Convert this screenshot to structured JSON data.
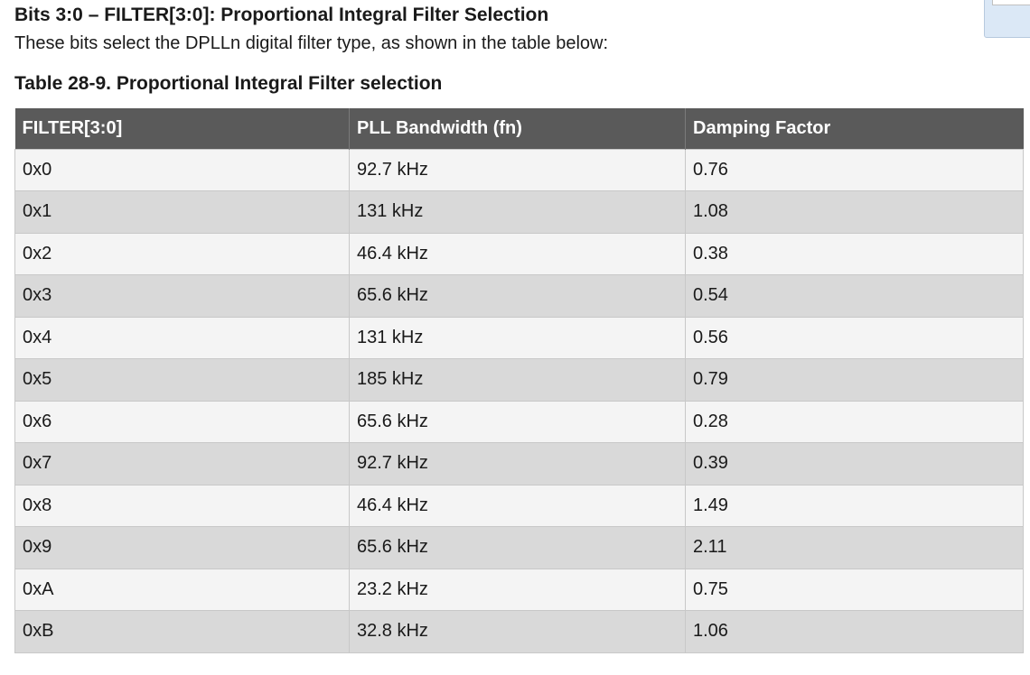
{
  "section": {
    "heading": "Bits 3:0 – FILTER[3:0]: Proportional Integral Filter Selection",
    "description": "These bits select the DPLLn digital filter type, as shown in the table below:"
  },
  "table": {
    "caption": "Table 28-9. Proportional Integral Filter selection",
    "headers": [
      "FILTER[3:0]",
      "PLL Bandwidth (fn)",
      "Damping Factor"
    ],
    "rows": [
      [
        "0x0",
        "92.7 kHz",
        "0.76"
      ],
      [
        "0x1",
        "131 kHz",
        "1.08"
      ],
      [
        "0x2",
        "46.4 kHz",
        "0.38"
      ],
      [
        "0x3",
        "65.6 kHz",
        "0.54"
      ],
      [
        "0x4",
        "131 kHz",
        "0.56"
      ],
      [
        "0x5",
        "185 kHz",
        "0.79"
      ],
      [
        "0x6",
        "65.6 kHz",
        "0.28"
      ],
      [
        "0x7",
        "92.7 kHz",
        "0.39"
      ],
      [
        "0x8",
        "46.4 kHz",
        "1.49"
      ],
      [
        "0x9",
        "65.6 kHz",
        "2.11"
      ],
      [
        "0xA",
        "23.2 kHz",
        "0.75"
      ],
      [
        "0xB",
        "32.8 kHz",
        "1.06"
      ]
    ]
  }
}
